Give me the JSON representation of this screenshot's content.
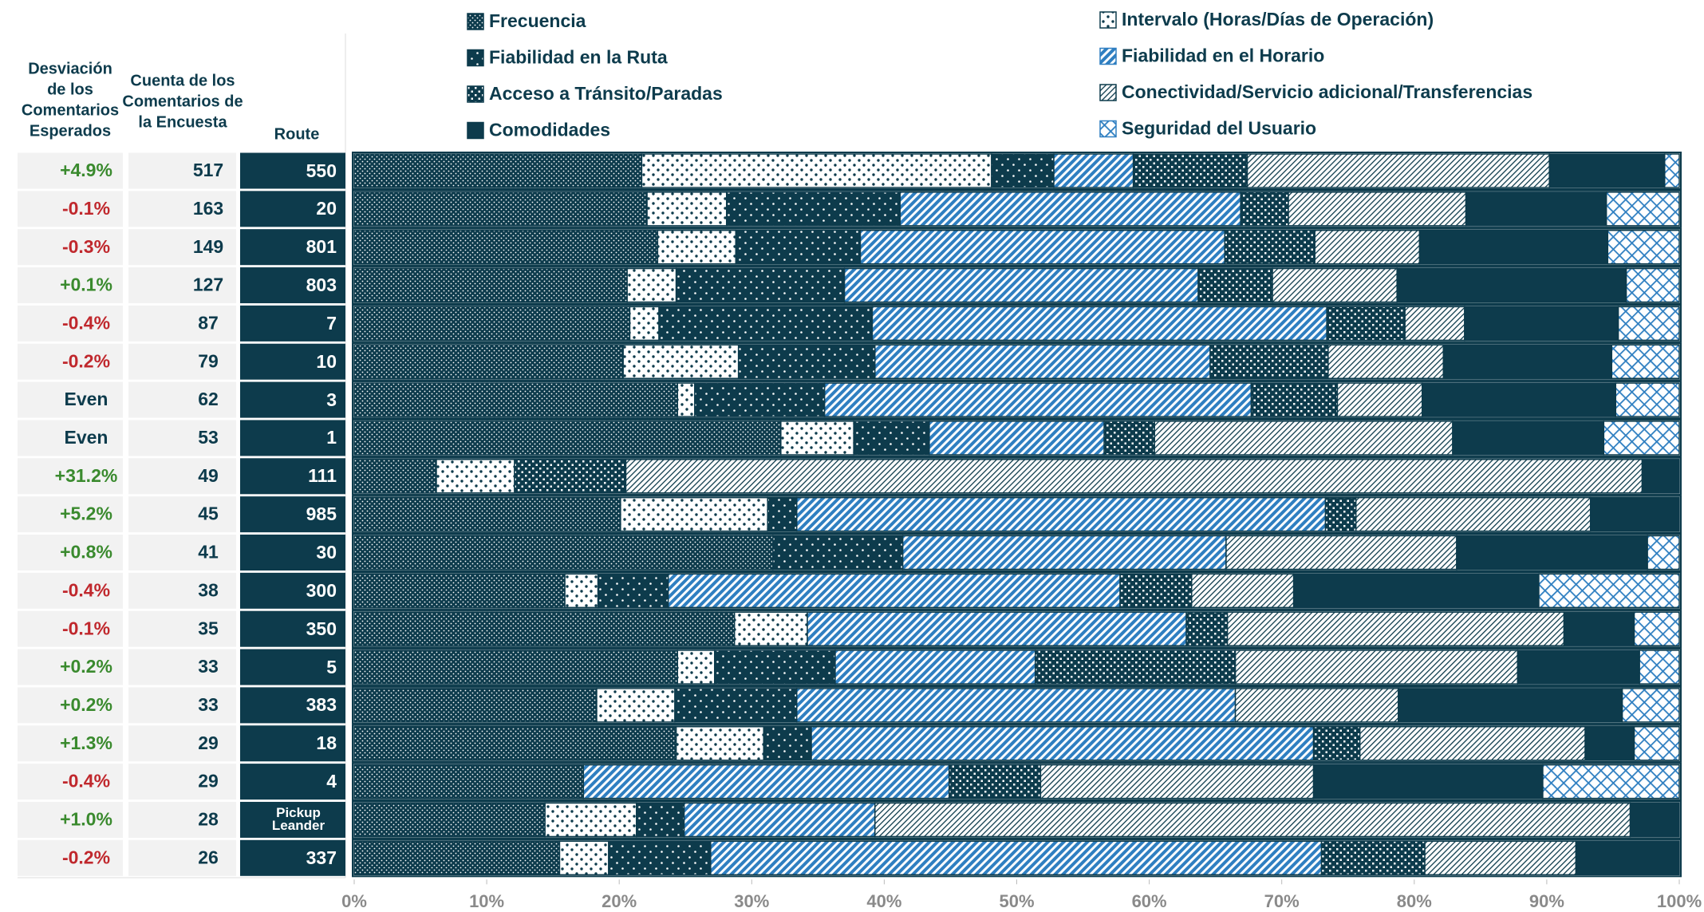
{
  "chart_data": {
    "type": "bar",
    "orientation": "horizontal",
    "stacked": true,
    "headers": {
      "deviation": [
        "Desviación",
        "de los",
        "Comentarios",
        "Esperados"
      ],
      "count": [
        "Cuenta de los",
        "Comentarios de",
        "la Encuesta"
      ],
      "route": [
        "Route"
      ]
    },
    "categories": [
      "550",
      "20",
      "801",
      "803",
      "7",
      "10",
      "3",
      "1",
      "111",
      "985",
      "30",
      "300",
      "350",
      "5",
      "383",
      "18",
      "4",
      "Pickup Leander",
      "337"
    ],
    "survey_counts": [
      517,
      163,
      149,
      127,
      87,
      79,
      62,
      53,
      49,
      45,
      41,
      38,
      35,
      33,
      33,
      29,
      29,
      28,
      26
    ],
    "deviations": [
      4.9,
      -0.1,
      -0.3,
      0.1,
      -0.4,
      -0.2,
      0,
      0,
      31.2,
      5.2,
      0.8,
      -0.4,
      -0.1,
      0.2,
      0.2,
      1.3,
      -0.4,
      1.0,
      -0.2
    ],
    "deviation_labels": [
      "+4.9%",
      "-0.1%",
      "-0.3%",
      "+0.1%",
      "-0.4%",
      "-0.2%",
      "Even",
      "Even",
      "+31.2%",
      "+5.2%",
      "+0.8%",
      "-0.4%",
      "-0.1%",
      "+0.2%",
      "+0.2%",
      "+1.3%",
      "-0.4%",
      "+1.0%",
      "-0.2%"
    ],
    "deviation_colors": {
      "positive": "#3a8a2e",
      "negative": "#c0282d",
      "zero": "#0d3b4c"
    },
    "series": [
      {
        "name": "Frecuencia",
        "color": "#0d3b4c",
        "pattern": "fine-dots",
        "values": [
          21.7,
          22.1,
          22.9,
          20.6,
          20.8,
          20.3,
          24.4,
          32.2,
          6.2,
          20.1,
          31.6,
          15.9,
          28.7,
          24.4,
          18.3,
          24.3,
          17.3,
          14.4,
          15.5
        ]
      },
      {
        "name": "Intervalo (Horas/Días de Operación)",
        "color": "#0d3b4c",
        "pattern": "sparse-dots",
        "values": [
          26.4,
          6.0,
          5.9,
          3.7,
          2.2,
          8.7,
          1.3,
          5.5,
          5.9,
          11.1,
          0,
          2.5,
          5.5,
          2.8,
          5.9,
          6.6,
          0,
          6.9,
          3.7
        ]
      },
      {
        "name": "Fiabilidad en la Ruta",
        "color": "#0d3b4c",
        "pattern": "light-dots",
        "values": [
          4.7,
          13.1,
          9.4,
          12.7,
          16.1,
          10.3,
          9.8,
          5.7,
          0,
          2.2,
          9.8,
          5.3,
          0,
          9.1,
          9.2,
          3.6,
          0,
          3.6,
          7.7
        ]
      },
      {
        "name": "Fiabilidad en el Horario",
        "color": "#2f7fc1",
        "pattern": "stripes",
        "values": [
          6.0,
          25.7,
          27.5,
          26.7,
          34.3,
          25.3,
          32.2,
          13.2,
          0,
          39.9,
          24.4,
          34.1,
          28.6,
          15.1,
          33.1,
          37.9,
          27.6,
          14.4,
          46.1
        ]
      },
      {
        "name": "Acceso a Tránsito/Paradas",
        "color": "#0d3b4c",
        "pattern": "checker",
        "values": [
          8.6,
          3.6,
          6.8,
          5.6,
          5.9,
          8.9,
          6.5,
          3.8,
          8.4,
          2.3,
          0,
          5.4,
          3.1,
          15.1,
          0,
          3.5,
          6.9,
          0,
          7.8
        ]
      },
      {
        "name": "Conectividad/Servicio adicional/Transferencias",
        "color": "#0d3b4c",
        "pattern": "hatch",
        "values": [
          22.8,
          13.4,
          7.9,
          9.4,
          4.5,
          8.7,
          6.4,
          22.5,
          76.7,
          17.7,
          17.4,
          7.7,
          25.4,
          21.3,
          12.3,
          17.0,
          20.6,
          57.0,
          11.4
        ]
      },
      {
        "name": "Comodidades",
        "color": "#0d3b4c",
        "pattern": "solid",
        "values": [
          8.7,
          10.6,
          14.2,
          17.3,
          11.6,
          12.7,
          14.6,
          11.4,
          2.8,
          6.7,
          14.4,
          18.5,
          5.3,
          9.2,
          16.9,
          3.7,
          17.3,
          3.7,
          7.8
        ]
      },
      {
        "name": "Seguridad del Usuario",
        "color": "#2f7fc1",
        "pattern": "crosshatch",
        "values": [
          1.1,
          5.5,
          5.4,
          4.0,
          4.6,
          5.1,
          4.8,
          5.7,
          0,
          0,
          2.4,
          10.6,
          3.4,
          3.0,
          4.3,
          3.4,
          10.3,
          0,
          0
        ]
      }
    ],
    "xlim": [
      0,
      100
    ],
    "xticks": [
      {
        "value": 0,
        "label": "0%"
      },
      {
        "value": 10,
        "label": "10%"
      },
      {
        "value": 20,
        "label": "20%"
      },
      {
        "value": 30,
        "label": "30%"
      },
      {
        "value": 40,
        "label": "40%"
      },
      {
        "value": 50,
        "label": "50%"
      },
      {
        "value": 60,
        "label": "60%"
      },
      {
        "value": 70,
        "label": "70%"
      },
      {
        "value": 80,
        "label": "80%"
      },
      {
        "value": 90,
        "label": "90%"
      },
      {
        "value": 100,
        "label": "100%"
      }
    ]
  }
}
